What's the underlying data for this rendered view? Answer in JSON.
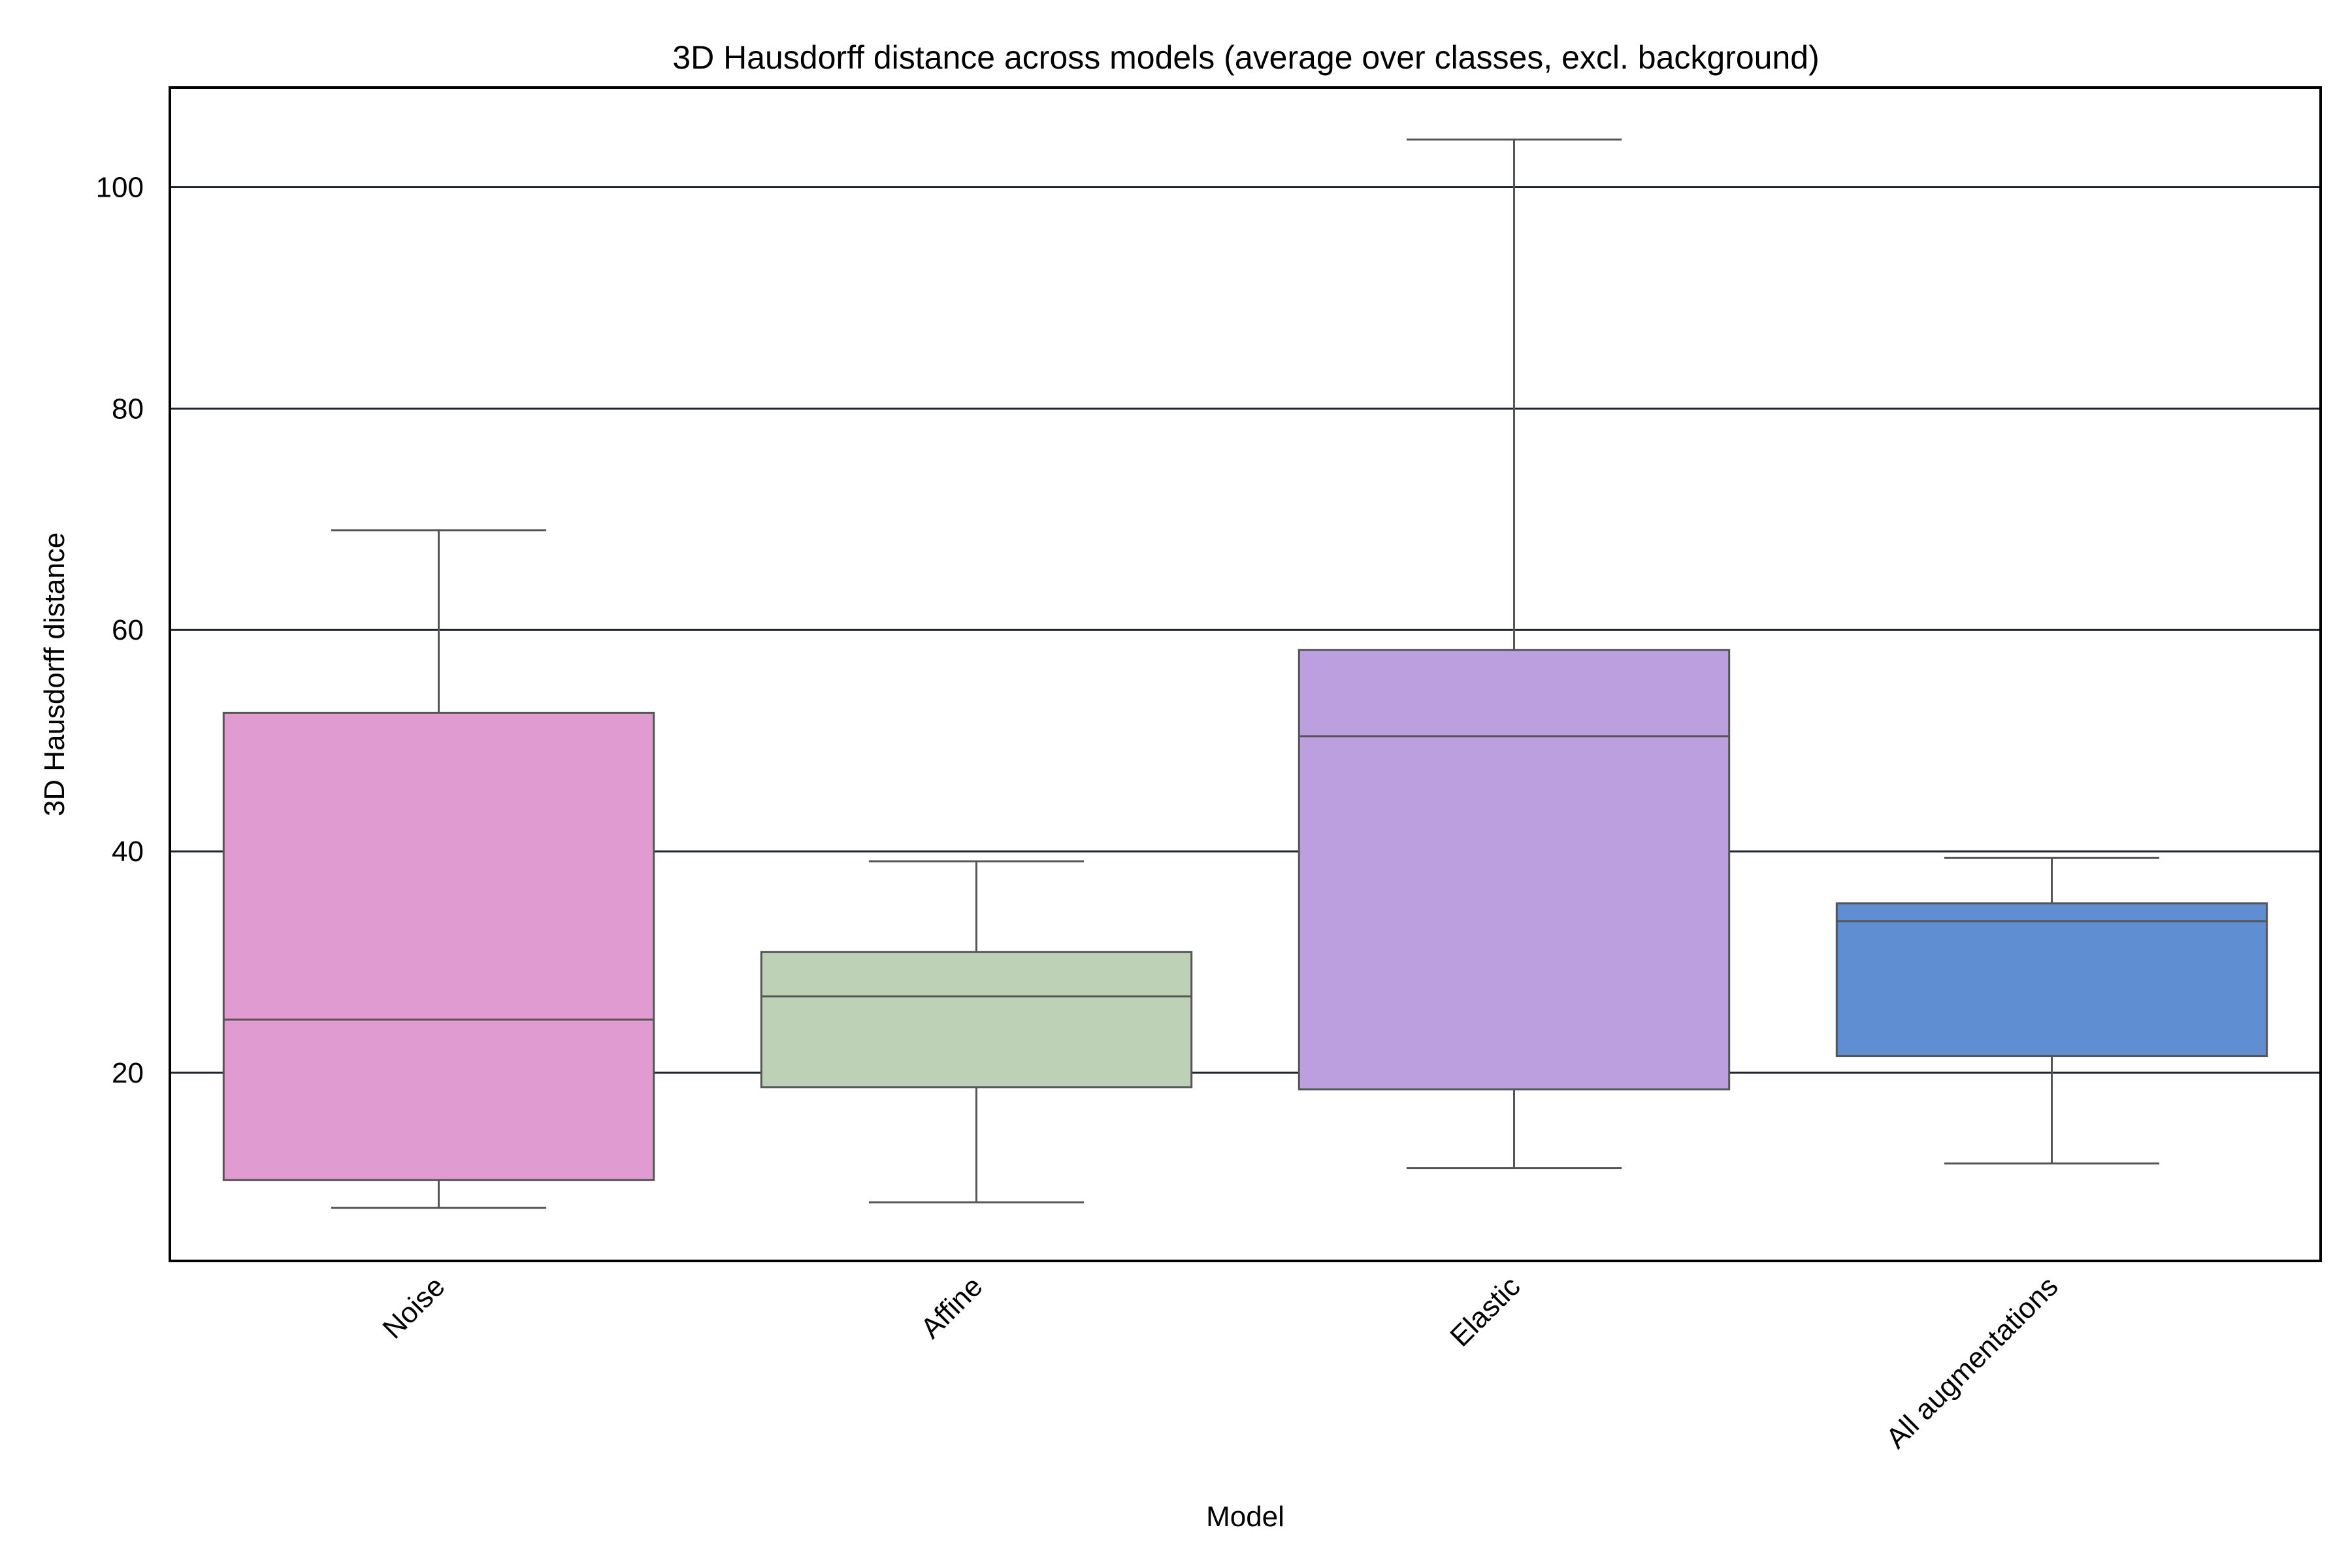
{
  "chart_data": {
    "type": "box",
    "title": "3D Hausdorff distance across models (average over classes, excl. background)",
    "xlabel": "Model",
    "ylabel": "3D Hausdorff distance",
    "ylim": [
      3,
      109
    ],
    "yticks": [
      20,
      40,
      60,
      80,
      100
    ],
    "grid": true,
    "categories": [
      "Noise",
      "Affine",
      "Elastic",
      "All augmentations"
    ],
    "series": [
      {
        "category": "Noise",
        "whisker_low": 7.8,
        "q1": 10.3,
        "median": 24.8,
        "q3": 52.5,
        "whisker_high": 69.0,
        "color": "#e09bd0"
      },
      {
        "category": "Affine",
        "whisker_low": 8.3,
        "q1": 18.7,
        "median": 26.9,
        "q3": 30.9,
        "whisker_high": 39.1,
        "color": "#bdd1b6"
      },
      {
        "category": "Elastic",
        "whisker_low": 11.4,
        "q1": 18.5,
        "median": 50.4,
        "q3": 58.2,
        "whisker_high": 104.3,
        "color": "#bc9fdf"
      },
      {
        "category": "All augmentations",
        "whisker_low": 11.8,
        "q1": 21.5,
        "median": 33.7,
        "q3": 35.3,
        "whisker_high": 39.4,
        "color": "#5f8fd2"
      }
    ]
  }
}
